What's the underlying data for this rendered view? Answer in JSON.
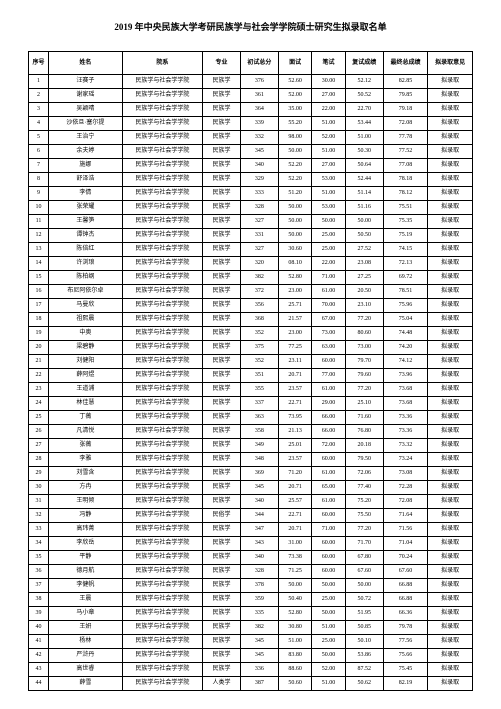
{
  "title": "2019 年中央民族大学考研民族学与社会学学院硕士研究生拟录取名单",
  "headers": {
    "idx": "序号",
    "name": "姓名",
    "dept": "院系",
    "major": "专业",
    "cs": "初试总分",
    "ms": "面试",
    "fs": "笔试",
    "fscj": "复试成绩",
    "zzcj": "最终总成绩",
    "yj": "拟录取意见"
  },
  "rows": [
    {
      "idx": "1",
      "name": "汪赛子",
      "dept": "民族学与社会学学院",
      "major": "民族学",
      "cs": "376",
      "ms": "52.60",
      "fs": "30.00",
      "fscj": "52.12",
      "zzcj": "82.85",
      "yj": "拟录取"
    },
    {
      "idx": "2",
      "name": "谢家瑶",
      "dept": "民族学与社会学学院",
      "major": "民族学",
      "cs": "361",
      "ms": "52.00",
      "fs": "27.00",
      "fscj": "50.52",
      "zzcj": "79.85",
      "yj": "拟录取"
    },
    {
      "idx": "3",
      "name": "吴颖晴",
      "dept": "民族学与社会学学院",
      "major": "民族学",
      "cs": "364",
      "ms": "35.00",
      "fs": "22.00",
      "fscj": "22.70",
      "zzcj": "79.18",
      "yj": "拟录取"
    },
    {
      "idx": "4",
      "name": "沙依旦·塞尔提",
      "dept": "民族学与社会学学院",
      "major": "民族学",
      "cs": "339",
      "ms": "55.20",
      "fs": "51.00",
      "fscj": "53.44",
      "zzcj": "72.08",
      "yj": "拟录取"
    },
    {
      "idx": "5",
      "name": "王治宁",
      "dept": "民族学与社会学学院",
      "major": "民族学",
      "cs": "332",
      "ms": "98.00",
      "fs": "52.00",
      "fscj": "51.00",
      "zzcj": "77.78",
      "yj": "拟录取"
    },
    {
      "idx": "6",
      "name": "余夫婷",
      "dept": "民族学与社会学学院",
      "major": "民族学",
      "cs": "345",
      "ms": "50.00",
      "fs": "51.00",
      "fscj": "50.30",
      "zzcj": "77.52",
      "yj": "拟录取"
    },
    {
      "idx": "7",
      "name": "施娜",
      "dept": "民族学与社会学学院",
      "major": "民族学",
      "cs": "340",
      "ms": "52.20",
      "fs": "27.00",
      "fscj": "50.64",
      "zzcj": "77.08",
      "yj": "拟录取"
    },
    {
      "idx": "8",
      "name": "舒泽浩",
      "dept": "民族学与社会学学院",
      "major": "民族学",
      "cs": "329",
      "ms": "52.20",
      "fs": "53.00",
      "fscj": "52.44",
      "zzcj": "78.18",
      "yj": "拟录取"
    },
    {
      "idx": "9",
      "name": "李倩",
      "dept": "民族学与社会学学院",
      "major": "民族学",
      "cs": "333",
      "ms": "51.20",
      "fs": "51.00",
      "fscj": "51.14",
      "zzcj": "78.12",
      "yj": "拟录取"
    },
    {
      "idx": "10",
      "name": "张荣耀",
      "dept": "民族学与社会学学院",
      "major": "民族学",
      "cs": "328",
      "ms": "50.00",
      "fs": "53.00",
      "fscj": "51.16",
      "zzcj": "75.51",
      "yj": "拟录取"
    },
    {
      "idx": "11",
      "name": "王馨笋",
      "dept": "民族学与社会学学院",
      "major": "民族学",
      "cs": "327",
      "ms": "50.00",
      "fs": "50.00",
      "fscj": "50.00",
      "zzcj": "75.35",
      "yj": "拟录取"
    },
    {
      "idx": "12",
      "name": "谭钟杰",
      "dept": "民族学与社会学学院",
      "major": "民族学",
      "cs": "331",
      "ms": "50.00",
      "fs": "25.00",
      "fscj": "50.50",
      "zzcj": "75.19",
      "yj": "拟录取"
    },
    {
      "idx": "13",
      "name": "陈倍红",
      "dept": "民族学与社会学学院",
      "major": "民族学",
      "cs": "327",
      "ms": "30.60",
      "fs": "25.00",
      "fscj": "27.52",
      "zzcj": "74.15",
      "yj": "拟录取"
    },
    {
      "idx": "14",
      "name": "许浏琅",
      "dept": "民族学与社会学学院",
      "major": "民族学",
      "cs": "320",
      "ms": "08.10",
      "fs": "22.00",
      "fscj": "23.08",
      "zzcj": "72.13",
      "yj": "拟录取"
    },
    {
      "idx": "15",
      "name": "陈柏纲",
      "dept": "民族学与社会学学院",
      "major": "民族学",
      "cs": "382",
      "ms": "52.80",
      "fs": "71.00",
      "fscj": "27.25",
      "zzcj": "69.72",
      "yj": "拟录取"
    },
    {
      "idx": "16",
      "name": "布尼阿依尔卓",
      "dept": "民族学与社会学学院",
      "major": "民族学",
      "cs": "372",
      "ms": "23.00",
      "fs": "61.00",
      "fscj": "20.50",
      "zzcj": "78.51",
      "yj": "拟录取"
    },
    {
      "idx": "17",
      "name": "马曼欣",
      "dept": "民族学与社会学学院",
      "major": "民族学",
      "cs": "356",
      "ms": "25.71",
      "fs": "70.00",
      "fscj": "23.10",
      "zzcj": "75.96",
      "yj": "拟录取"
    },
    {
      "idx": "18",
      "name": "祖熙晨",
      "dept": "民族学与社会学学院",
      "major": "民族学",
      "cs": "368",
      "ms": "21.57",
      "fs": "67.00",
      "fscj": "77.20",
      "zzcj": "75.04",
      "yj": "拟录取"
    },
    {
      "idx": "19",
      "name": "中奥",
      "dept": "民族学与社会学学院",
      "major": "民族学",
      "cs": "352",
      "ms": "23.00",
      "fs": "73.00",
      "fscj": "80.60",
      "zzcj": "74.48",
      "yj": "拟录取"
    },
    {
      "idx": "20",
      "name": "梁碧静",
      "dept": "民族学与社会学学院",
      "major": "民族学",
      "cs": "375",
      "ms": "77.25",
      "fs": "63.00",
      "fscj": "73.00",
      "zzcj": "74.20",
      "yj": "拟录取"
    },
    {
      "idx": "21",
      "name": "刘健阳",
      "dept": "民族学与社会学学院",
      "major": "民族学",
      "cs": "352",
      "ms": "23.11",
      "fs": "60.00",
      "fscj": "79.70",
      "zzcj": "74.12",
      "yj": "拟录取"
    },
    {
      "idx": "22",
      "name": "薛阿煜",
      "dept": "民族学与社会学学院",
      "major": "民族学",
      "cs": "351",
      "ms": "20.71",
      "fs": "77.00",
      "fscj": "79.60",
      "zzcj": "73.96",
      "yj": "拟录取"
    },
    {
      "idx": "23",
      "name": "王道浦",
      "dept": "民族学与社会学学院",
      "major": "民族学",
      "cs": "355",
      "ms": "23.57",
      "fs": "61.00",
      "fscj": "77.20",
      "zzcj": "73.68",
      "yj": "拟录取"
    },
    {
      "idx": "24",
      "name": "林佳慧",
      "dept": "民族学与社会学学院",
      "major": "民族学",
      "cs": "337",
      "ms": "22.71",
      "fs": "29.00",
      "fscj": "25.10",
      "zzcj": "73.68",
      "yj": "拟录取"
    },
    {
      "idx": "25",
      "name": "丁薇",
      "dept": "民族学与社会学学院",
      "major": "民族学",
      "cs": "363",
      "ms": "73.95",
      "fs": "66.00",
      "fscj": "71.60",
      "zzcj": "73.36",
      "yj": "拟录取"
    },
    {
      "idx": "26",
      "name": "凡清悦",
      "dept": "民族学与社会学学院",
      "major": "民族学",
      "cs": "358",
      "ms": "21.13",
      "fs": "66.00",
      "fscj": "76.80",
      "zzcj": "73.36",
      "yj": "拟录取"
    },
    {
      "idx": "27",
      "name": "张薇",
      "dept": "民族学与社会学学院",
      "major": "民族学",
      "cs": "349",
      "ms": "25.01",
      "fs": "72.00",
      "fscj": "20.18",
      "zzcj": "73.32",
      "yj": "拟录取"
    },
    {
      "idx": "28",
      "name": "李雅",
      "dept": "民族学与社会学学院",
      "major": "民族学",
      "cs": "348",
      "ms": "23.57",
      "fs": "60.00",
      "fscj": "79.50",
      "zzcj": "73.24",
      "yj": "拟录取"
    },
    {
      "idx": "29",
      "name": "刘雪含",
      "dept": "民族学与社会学学院",
      "major": "民族学",
      "cs": "369",
      "ms": "71.20",
      "fs": "61.00",
      "fscj": "72.06",
      "zzcj": "73.08",
      "yj": "拟录取"
    },
    {
      "idx": "30",
      "name": "方冉",
      "dept": "民族学与社会学学院",
      "major": "民族学",
      "cs": "345",
      "ms": "20.71",
      "fs": "65.00",
      "fscj": "77.40",
      "zzcj": "72.28",
      "yj": "拟录取"
    },
    {
      "idx": "31",
      "name": "王明倾",
      "dept": "民族学与社会学学院",
      "major": "民族学",
      "cs": "340",
      "ms": "25.57",
      "fs": "61.00",
      "fscj": "75.20",
      "zzcj": "72.08",
      "yj": "拟录取"
    },
    {
      "idx": "32",
      "name": "冯静",
      "dept": "民族学与社会学学院",
      "major": "民俗学",
      "cs": "344",
      "ms": "22.71",
      "fs": "60.00",
      "fscj": "75.50",
      "zzcj": "71.64",
      "yj": "拟录取"
    },
    {
      "idx": "33",
      "name": "高玮菁",
      "dept": "民族学与社会学学院",
      "major": "民族学",
      "cs": "347",
      "ms": "20.71",
      "fs": "71.00",
      "fscj": "77.20",
      "zzcj": "71.56",
      "yj": "拟录取"
    },
    {
      "idx": "34",
      "name": "李欣岳",
      "dept": "民族学与社会学学院",
      "major": "民族学",
      "cs": "343",
      "ms": "31.00",
      "fs": "60.00",
      "fscj": "71.70",
      "zzcj": "71.04",
      "yj": "拟录取"
    },
    {
      "idx": "35",
      "name": "平静",
      "dept": "民族学与社会学学院",
      "major": "民族学",
      "cs": "340",
      "ms": "73.38",
      "fs": "60.00",
      "fscj": "67.80",
      "zzcj": "70.24",
      "yj": "拟录取"
    },
    {
      "idx": "36",
      "name": "德月航",
      "dept": "民族学与社会学学院",
      "major": "民族学",
      "cs": "328",
      "ms": "71.25",
      "fs": "60.00",
      "fscj": "67.60",
      "zzcj": "67.60",
      "yj": "拟录取"
    },
    {
      "idx": "37",
      "name": "李健帆",
      "dept": "民族学与社会学学院",
      "major": "民族学",
      "cs": "378",
      "ms": "50.00",
      "fs": "50.00",
      "fscj": "50.00",
      "zzcj": "66.88",
      "yj": "拟录取"
    },
    {
      "idx": "38",
      "name": "王晨",
      "dept": "民族学与社会学学院",
      "major": "民族学",
      "cs": "359",
      "ms": "50.40",
      "fs": "25.00",
      "fscj": "50.72",
      "zzcj": "66.88",
      "yj": "拟录取"
    },
    {
      "idx": "39",
      "name": "马小章",
      "dept": "民族学与社会学学院",
      "major": "民族学",
      "cs": "335",
      "ms": "52.80",
      "fs": "50.00",
      "fscj": "51.95",
      "zzcj": "66.36",
      "yj": "拟录取"
    },
    {
      "idx": "40",
      "name": "王妍",
      "dept": "民族学与社会学学院",
      "major": "民族学",
      "cs": "382",
      "ms": "30.80",
      "fs": "51.00",
      "fscj": "50.85",
      "zzcj": "79.78",
      "yj": "拟录取"
    },
    {
      "idx": "41",
      "name": "杨林",
      "dept": "民族学与社会学学院",
      "major": "民族学",
      "cs": "345",
      "ms": "51.00",
      "fs": "25.00",
      "fscj": "50.10",
      "zzcj": "77.56",
      "yj": "拟录取"
    },
    {
      "idx": "42",
      "name": "严浒丹",
      "dept": "民族学与社会学学院",
      "major": "民族学",
      "cs": "345",
      "ms": "83.80",
      "fs": "50.00",
      "fscj": "53.86",
      "zzcj": "75.66",
      "yj": "拟录取"
    },
    {
      "idx": "43",
      "name": "高世睿",
      "dept": "民族学与社会学学院",
      "major": "民族学",
      "cs": "336",
      "ms": "88.60",
      "fs": "52.00",
      "fscj": "87.52",
      "zzcj": "75.45",
      "yj": "拟录取"
    },
    {
      "idx": "44",
      "name": "薛雪",
      "dept": "民族学与社会学学院",
      "major": "人类学",
      "cs": "387",
      "ms": "50.60",
      "fs": "51.00",
      "fscj": "50.62",
      "zzcj": "82.19",
      "yj": "拟录取"
    }
  ]
}
